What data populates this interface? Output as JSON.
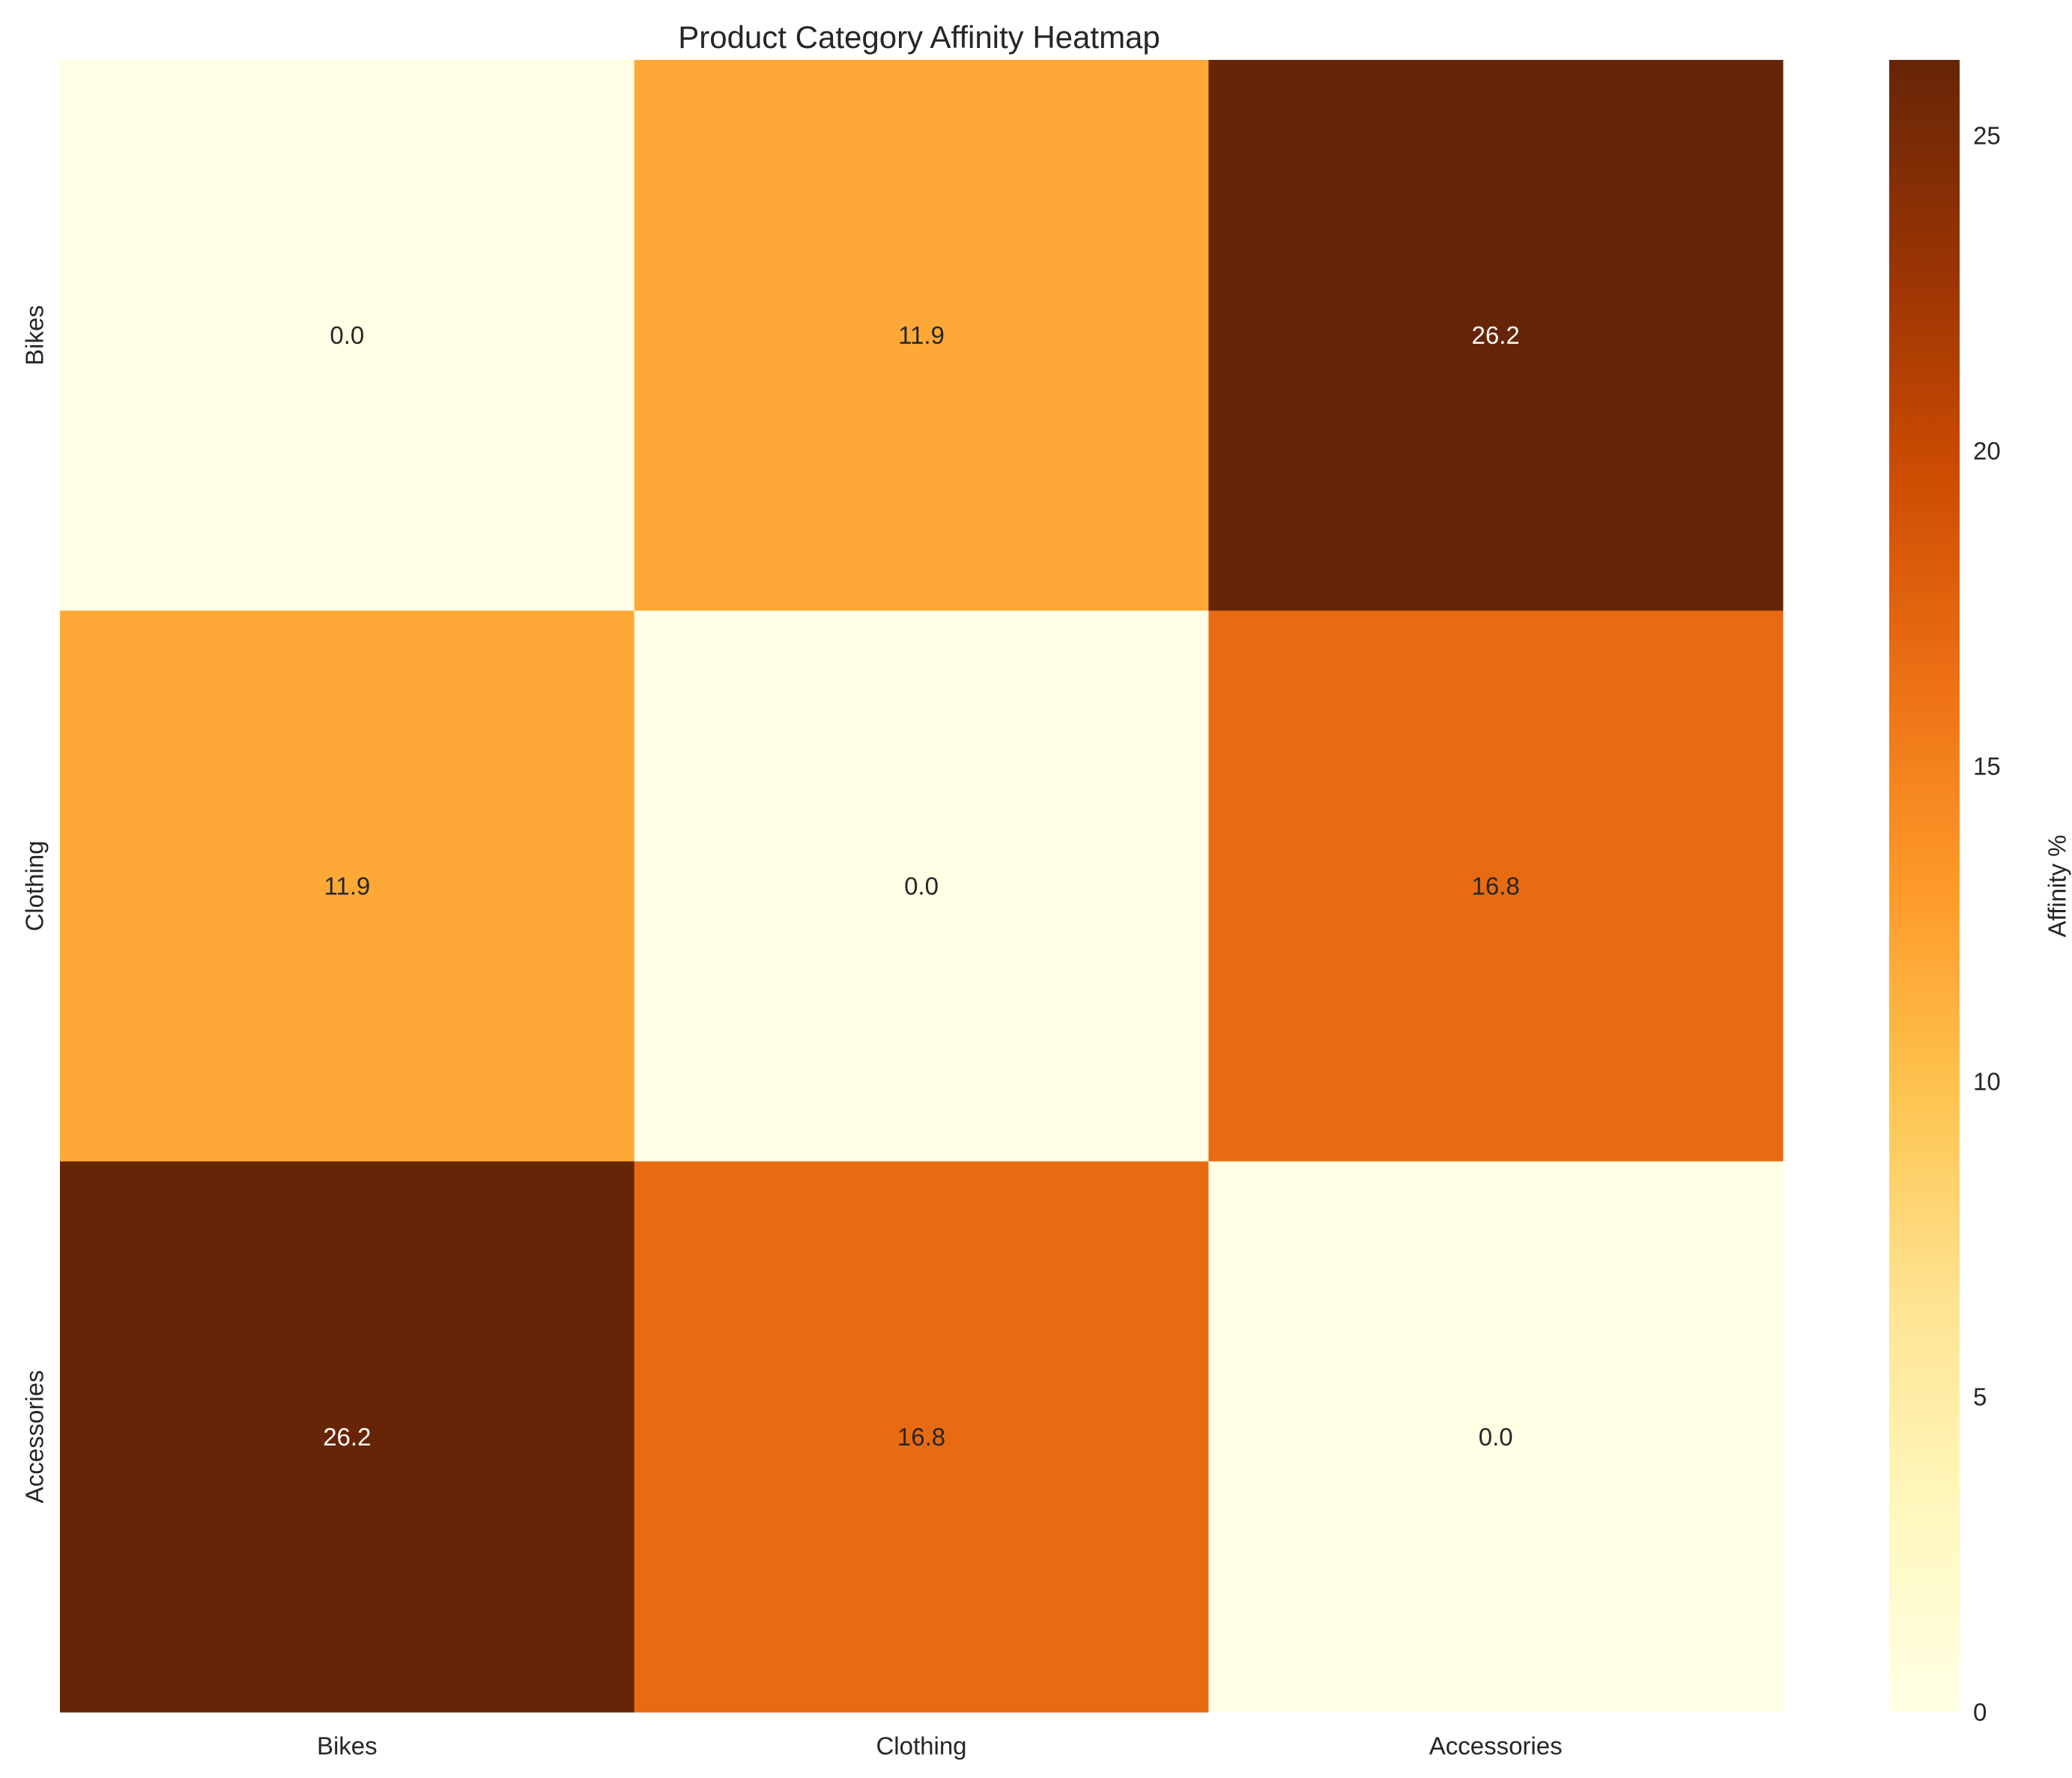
{
  "chart_data": {
    "type": "heatmap",
    "title": "Product Category Affinity Heatmap",
    "xlabel": "",
    "ylabel": "",
    "x_categories": [
      "Bikes",
      "Clothing",
      "Accessories"
    ],
    "y_categories": [
      "Bikes",
      "Clothing",
      "Accessories"
    ],
    "values": [
      [
        0.0,
        11.9,
        26.2
      ],
      [
        11.9,
        0.0,
        16.8
      ],
      [
        26.2,
        16.8,
        0.0
      ]
    ],
    "value_format": "0.0",
    "colormap": "YlOrBr",
    "colorbar": {
      "label": "Affinity %",
      "range": [
        0,
        26.2
      ],
      "ticks": [
        0,
        5,
        10,
        15,
        20,
        25
      ]
    },
    "colors": {
      "annotation_dark_text": "#262626",
      "annotation_light_text": "#ffffff",
      "axis_text": "#262626"
    },
    "grid": false
  }
}
